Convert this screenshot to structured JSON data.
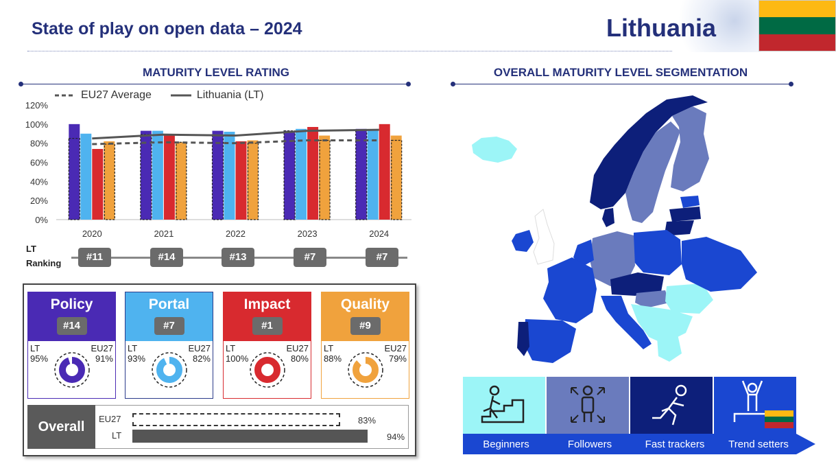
{
  "header": {
    "title": "State of play on open data – 2024",
    "country": "Lithuania",
    "flag_colors": [
      "#FDB913",
      "#006A44",
      "#C1272D"
    ]
  },
  "maturity": {
    "title": "MATURITY LEVEL RATING",
    "ranking_label_1": "LT",
    "ranking_label_2": "Ranking",
    "rankings": [
      "#11",
      "#14",
      "#13",
      "#7",
      "#7"
    ]
  },
  "segmentation": {
    "title": "OVERALL MATURITY LEVEL SEGMENTATION",
    "segments": [
      {
        "label": "Beginners",
        "color": "#9cf5f7",
        "icon": "stairs-climber-icon"
      },
      {
        "label": "Followers",
        "color": "#6a7bbd",
        "icon": "person-arrows-icon"
      },
      {
        "label": "Fast trackers",
        "color": "#0d1f7a",
        "icon": "runner-icon"
      },
      {
        "label": "Trend setters",
        "color": "#1a47d1",
        "icon": "podium-icon"
      }
    ]
  },
  "dimensions": [
    {
      "name": "Policy",
      "rank": "#14",
      "lt_label": "LT",
      "eu_label": "EU27",
      "lt": "95%",
      "eu": "91%",
      "lt_value": 95,
      "color": "#4a2ab4"
    },
    {
      "name": "Portal",
      "rank": "#7",
      "lt_label": "LT",
      "eu_label": "EU27",
      "lt": "93%",
      "eu": "82%",
      "lt_value": 93,
      "color": "#4fb3ef"
    },
    {
      "name": "Impact",
      "rank": "#1",
      "lt_label": "LT",
      "eu_label": "EU27",
      "lt": "100%",
      "eu": "80%",
      "lt_value": 100,
      "color": "#d82a2f"
    },
    {
      "name": "Quality",
      "rank": "#9",
      "lt_label": "LT",
      "eu_label": "EU27",
      "lt": "88%",
      "eu": "79%",
      "lt_value": 88,
      "color": "#f0a23d"
    }
  ],
  "overall": {
    "label": "Overall",
    "eu_label": "EU27",
    "lt_label": "LT",
    "eu_value": 83,
    "lt_value": 94,
    "eu_text": "83%",
    "lt_text": "94%"
  },
  "chart_data": {
    "type": "bar",
    "categories": [
      "2020",
      "2021",
      "2022",
      "2023",
      "2024"
    ],
    "ylim": [
      0,
      120
    ],
    "yticks": [
      "0%",
      "20%",
      "40%",
      "60%",
      "80%",
      "100%",
      "120%"
    ],
    "series": [
      {
        "name": "Policy",
        "color": "#4a2ab4",
        "values": [
          100,
          93,
          93,
          93,
          95
        ]
      },
      {
        "name": "Portal",
        "color": "#4fb3ef",
        "values": [
          90,
          93,
          92,
          95,
          93
        ]
      },
      {
        "name": "Impact",
        "color": "#d82a2f",
        "values": [
          74,
          89,
          82,
          97,
          100
        ]
      },
      {
        "name": "Quality",
        "color": "#f0a23d",
        "values": [
          82,
          81,
          83,
          88,
          88
        ]
      }
    ],
    "lines": [
      {
        "name": "EU27 Average",
        "style": "dashed",
        "color": "#555555",
        "values": [
          79,
          81,
          80,
          83,
          83
        ]
      },
      {
        "name": "Lithuania (LT)",
        "style": "solid",
        "color": "#555555",
        "values": [
          85,
          89,
          88,
          93,
          94
        ]
      }
    ],
    "legend": [
      "EU27 Average",
      "Lithuania (LT)"
    ],
    "grid": false
  }
}
